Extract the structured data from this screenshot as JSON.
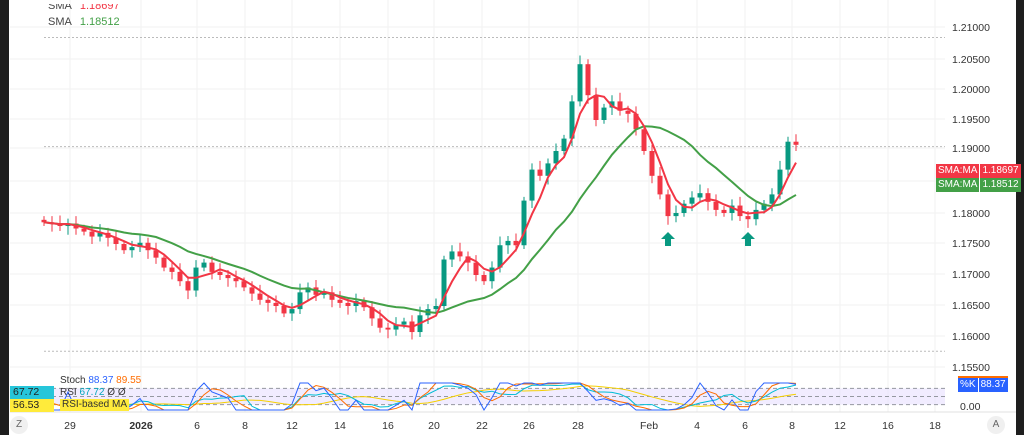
{
  "legend": {
    "sma1_label": "SMA",
    "sma1_value": "1.18697",
    "sma2_label": "SMA",
    "sma2_value": "1.18512"
  },
  "colors": {
    "up": "#089981",
    "down": "#f23645",
    "sma_fast": "#f23645",
    "sma_slow": "#43a047",
    "stoch_k": "#2962ff",
    "stoch_d": "#ff6d00",
    "rsi": "#00bcd4",
    "rsi_ma": "#f5d000",
    "osc_band": "#e8e0ff"
  },
  "price_axis": [
    "1.21000",
    "1.20500",
    "1.20000",
    "1.19500",
    "1.19000",
    "1.18000",
    "1.17500",
    "1.17000",
    "1.16500",
    "1.16000",
    "1.15500"
  ],
  "price_tags": [
    {
      "label": "SMA:MA",
      "value": "1.18697",
      "color": "#f23645"
    },
    {
      "label": "SMA:MA",
      "value": "1.18512",
      "color": "#43a047"
    }
  ],
  "time_axis": [
    "29",
    "2026",
    "6",
    "8",
    "12",
    "14",
    "16",
    "20",
    "22",
    "26",
    "28",
    "Feb",
    "4",
    "6",
    "8",
    "12",
    "16",
    "18"
  ],
  "osc": {
    "stoch_label": "Stoch",
    "stoch_k": "88.37",
    "stoch_d": "89.55",
    "rsi_label": "RSI",
    "rsi_value": "67.72",
    "rsi_extra": "Ø  Ø",
    "rsi_ma_label": "RSI-based MA",
    "rsi_ma_value": "56.53",
    "k_tag": "%K",
    "k_value": "88.37",
    "zero": "0.00"
  },
  "buttons": {
    "left": "Z",
    "right": "A"
  },
  "markers": [
    "arrow-up",
    "arrow-up"
  ],
  "chart_data": {
    "type": "candlestick",
    "ylim": [
      1.155,
      1.21
    ],
    "closes": [
      1.1785,
      1.1782,
      1.1779,
      1.1783,
      1.1775,
      1.177,
      1.1762,
      1.1768,
      1.176,
      1.175,
      1.174,
      1.1745,
      1.1752,
      1.174,
      1.1728,
      1.1712,
      1.1705,
      1.169,
      1.1675,
      1.1712,
      1.172,
      1.1705,
      1.17,
      1.1695,
      1.169,
      1.168,
      1.167,
      1.166,
      1.1655,
      1.165,
      1.1638,
      1.1645,
      1.1672,
      1.168,
      1.1668,
      1.1672,
      1.166,
      1.1655,
      1.165,
      1.1658,
      1.1648,
      1.163,
      1.1615,
      1.1612,
      1.162,
      1.1625,
      1.1608,
      1.1635,
      1.1645,
      1.165,
      1.1725,
      1.1738,
      1.173,
      1.172,
      1.17,
      1.169,
      1.1712,
      1.1748,
      1.1755,
      1.1748,
      1.182,
      1.187,
      1.186,
      1.188,
      1.19,
      1.192,
      1.198,
      1.204,
      1.199,
      1.195,
      1.197,
      1.198,
      1.1965,
      1.196,
      1.1935,
      1.19,
      1.186,
      1.183,
      1.1795,
      1.18,
      1.1815,
      1.1825,
      1.1832,
      1.1818,
      1.1805,
      1.18,
      1.1812,
      1.1795,
      1.179,
      1.1805,
      1.1815,
      1.183,
      1.187,
      1.1915,
      1.191
    ],
    "marker_candle_index": [
      78,
      88
    ],
    "reference_lines": [
      1.2083,
      1.1907,
      1.1577
    ]
  }
}
